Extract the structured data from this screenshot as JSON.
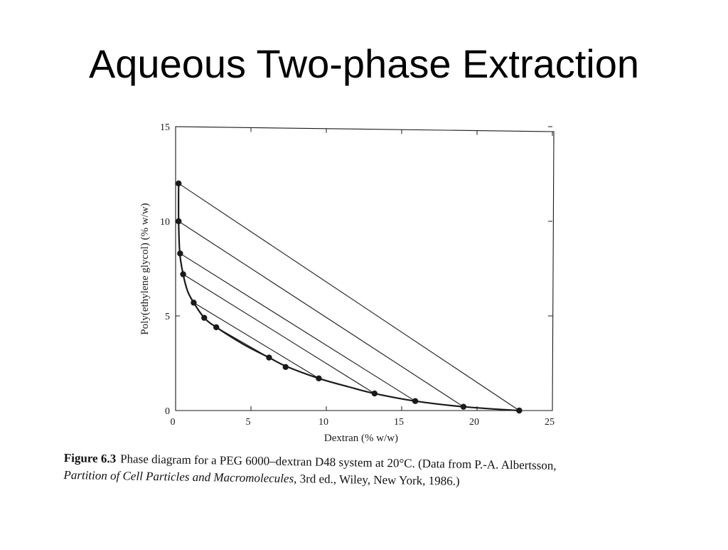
{
  "slide": {
    "title": "Aqueous Two-phase Extraction"
  },
  "chart_data": {
    "type": "scatter",
    "title": "",
    "xlabel": "Dextran (% w/w)",
    "ylabel": "Poly(ethylene glycol) (% w/w)",
    "xlim": [
      0,
      25
    ],
    "ylim": [
      0,
      15
    ],
    "x_ticks": [
      0,
      5,
      10,
      15,
      20,
      25
    ],
    "y_ticks": [
      0,
      5,
      10,
      15
    ],
    "grid": false,
    "series": [
      {
        "kind": "binodal-points",
        "points": [
          {
            "x": 0.2,
            "y": 12.0
          },
          {
            "x": 0.2,
            "y": 10.0
          },
          {
            "x": 0.3,
            "y": 8.3
          },
          {
            "x": 0.5,
            "y": 7.2
          },
          {
            "x": 1.2,
            "y": 5.7
          },
          {
            "x": 1.9,
            "y": 4.9
          },
          {
            "x": 2.7,
            "y": 4.4
          },
          {
            "x": 6.2,
            "y": 2.8
          },
          {
            "x": 7.3,
            "y": 2.3
          },
          {
            "x": 9.5,
            "y": 1.7
          },
          {
            "x": 13.2,
            "y": 0.9
          },
          {
            "x": 15.9,
            "y": 0.5
          },
          {
            "x": 19.1,
            "y": 0.2
          },
          {
            "x": 22.8,
            "y": 0.0
          }
        ]
      },
      {
        "kind": "binodal-curve",
        "points": [
          {
            "x": 0.2,
            "y": 12.0
          },
          {
            "x": 0.2,
            "y": 10.0
          },
          {
            "x": 0.28,
            "y": 8.3
          },
          {
            "x": 0.5,
            "y": 7.2
          },
          {
            "x": 0.8,
            "y": 6.3
          },
          {
            "x": 1.2,
            "y": 5.7
          },
          {
            "x": 1.9,
            "y": 4.9
          },
          {
            "x": 2.7,
            "y": 4.4
          },
          {
            "x": 4.5,
            "y": 3.5
          },
          {
            "x": 6.2,
            "y": 2.8
          },
          {
            "x": 7.3,
            "y": 2.35
          },
          {
            "x": 9.5,
            "y": 1.7
          },
          {
            "x": 11.5,
            "y": 1.25
          },
          {
            "x": 13.2,
            "y": 0.9
          },
          {
            "x": 15.9,
            "y": 0.5
          },
          {
            "x": 19.1,
            "y": 0.2
          },
          {
            "x": 22.8,
            "y": 0.0
          }
        ]
      },
      {
        "kind": "tie-lines",
        "lines": [
          {
            "from": {
              "x": 0.2,
              "y": 12.0
            },
            "to": {
              "x": 22.8,
              "y": 0.0
            }
          },
          {
            "from": {
              "x": 0.2,
              "y": 10.0
            },
            "to": {
              "x": 19.1,
              "y": 0.2
            }
          },
          {
            "from": {
              "x": 0.3,
              "y": 8.3
            },
            "to": {
              "x": 15.9,
              "y": 0.5
            }
          },
          {
            "from": {
              "x": 0.5,
              "y": 7.2
            },
            "to": {
              "x": 13.2,
              "y": 0.9
            }
          },
          {
            "from": {
              "x": 1.2,
              "y": 5.7
            },
            "to": {
              "x": 9.5,
              "y": 1.7
            }
          },
          {
            "from": {
              "x": 2.7,
              "y": 4.4
            },
            "to": {
              "x": 6.2,
              "y": 2.8
            }
          }
        ]
      }
    ]
  },
  "caption": {
    "figure_label": "Figure 6.3",
    "line1_text": "Phase diagram for a PEG 6000–dextran D48 system at 20°C. (Data from P.-A. Albertsson,",
    "line2_italic": "Partition of Cell Particles and Macromolecules,",
    "line2_text": " 3rd ed., Wiley, New York, 1986.)"
  },
  "colors": {
    "ink": "#1a1a1a",
    "background": "#ffffff"
  }
}
